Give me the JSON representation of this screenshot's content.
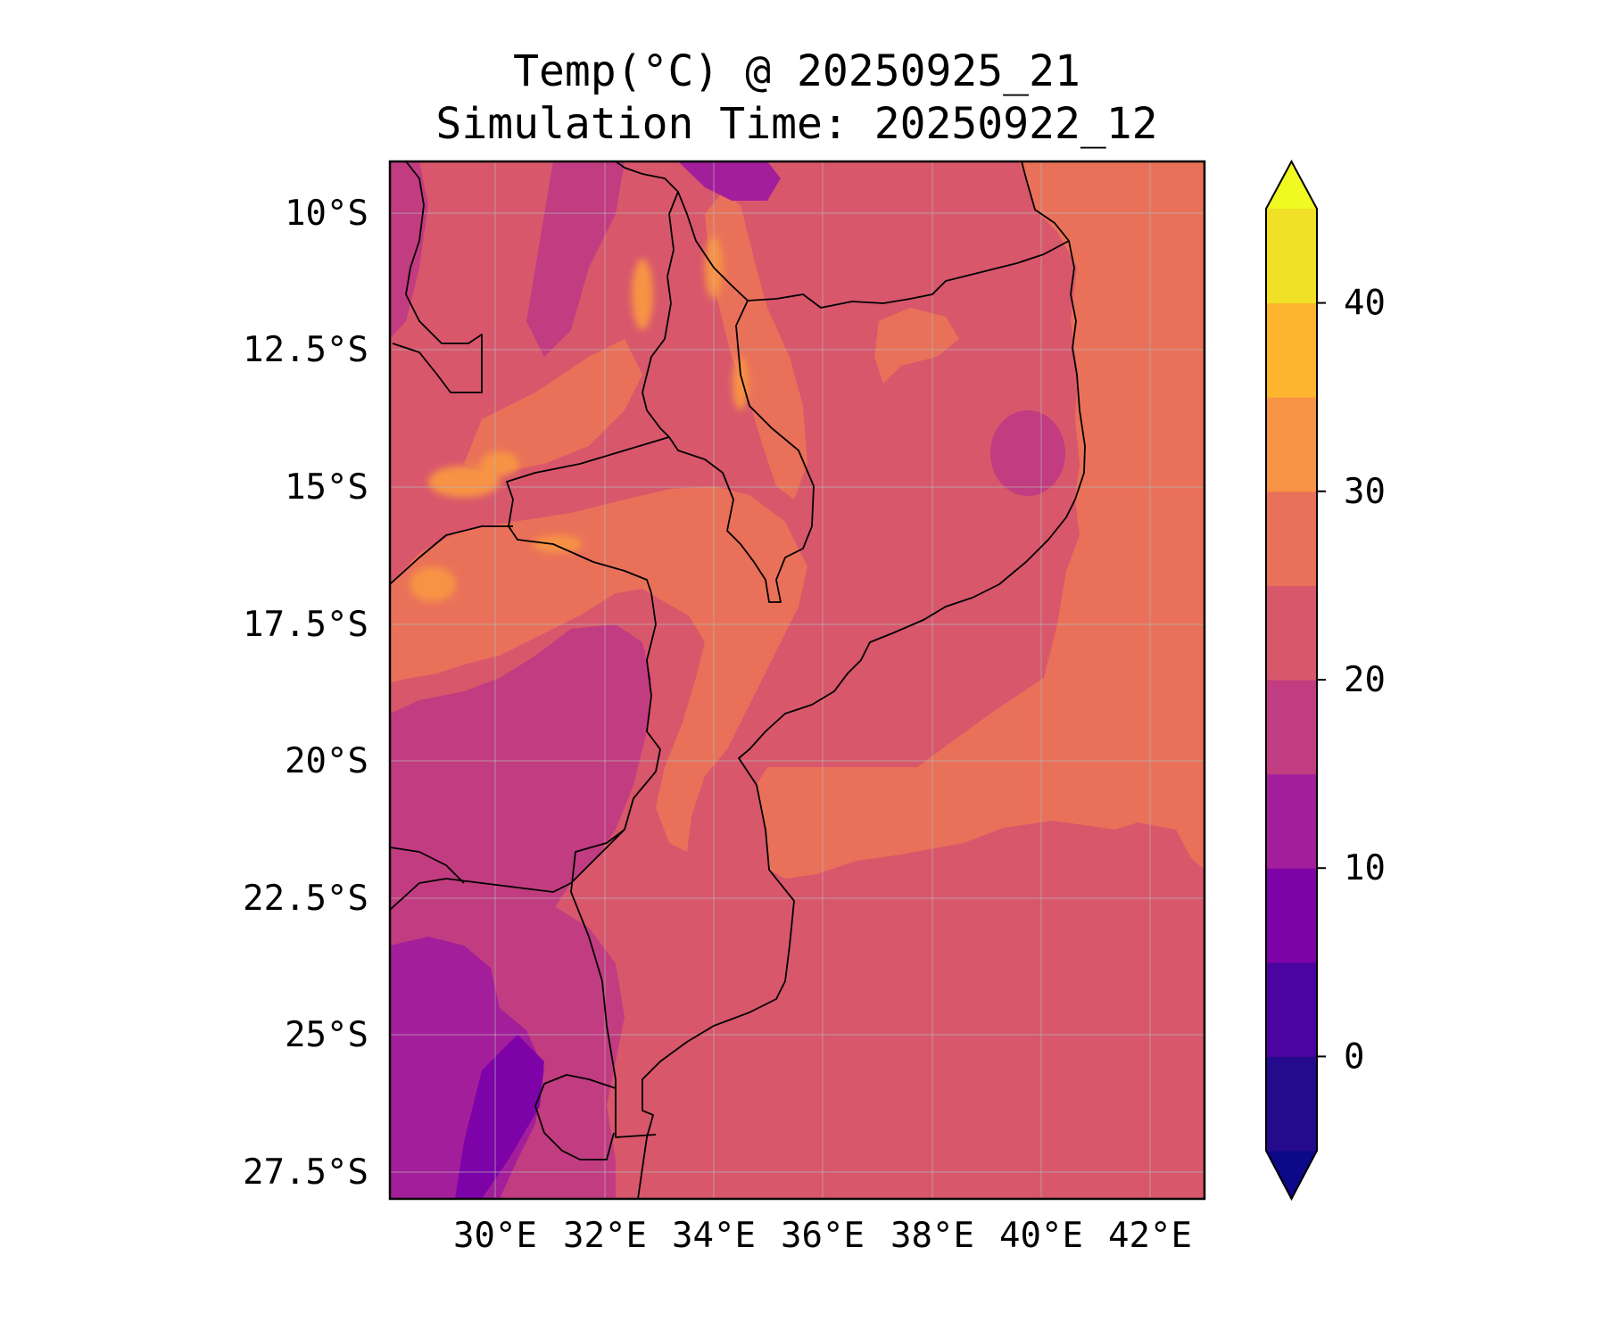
{
  "title": {
    "line1": "Temp(°C) @ 20250925_21",
    "line2": "Simulation Time: 20250922_12"
  },
  "map": {
    "lon_range": [
      28.0,
      43.0
    ],
    "lat_range": [
      -28.0,
      -9.0
    ],
    "gridlines": true,
    "x_ticks": [
      "30°E",
      "32°E",
      "34°E",
      "36°E",
      "38°E",
      "40°E",
      "42°E"
    ],
    "y_ticks": [
      "10°S",
      "12.5°S",
      "15°S",
      "17.5°S",
      "20°S",
      "22.5°S",
      "25°S",
      "27.5°S"
    ],
    "dominant_values": {
      "ocean_north_c": "25-30",
      "ocean_south_c": "20-25",
      "interior_south_c": "10-20",
      "interior_north_c": "20-30"
    }
  },
  "colorbar": {
    "label": "",
    "ticks": [
      "0",
      "10",
      "20",
      "30",
      "40"
    ],
    "levels": [
      -5,
      0,
      5,
      10,
      15,
      20,
      25,
      30,
      35,
      40,
      45
    ],
    "colors": [
      "#240a8c",
      "#4b03a1",
      "#7d03a8",
      "#a31e9a",
      "#c23c81",
      "#d8576b",
      "#e97159",
      "#f79344",
      "#fdb42f",
      "#f0e026"
    ],
    "under_color": "#0d0887",
    "over_color": "#f0f921",
    "extend": "both"
  }
}
